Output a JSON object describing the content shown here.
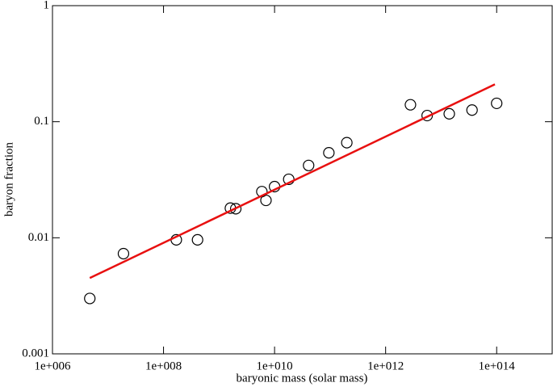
{
  "chart_data": {
    "type": "scatter",
    "xlabel": "baryonic mass (solar mass)",
    "ylabel": "baryon fraction",
    "xscale": "log",
    "yscale": "log",
    "xlim": [
      1000000.0,
      1000000000000000.0
    ],
    "ylim": [
      0.001,
      1
    ],
    "xticks": [
      {
        "value": 1000000.0,
        "label": "1e+006"
      },
      {
        "value": 100000000.0,
        "label": "1e+008"
      },
      {
        "value": 10000000000.0,
        "label": "1e+010"
      },
      {
        "value": 1000000000000.0,
        "label": "1e+012"
      },
      {
        "value": 100000000000000.0,
        "label": "1e+014"
      }
    ],
    "yticks": [
      0.001,
      0.01,
      0.1,
      1
    ],
    "series": [
      {
        "type": "scatter",
        "color": "#000000",
        "x": [
          4700000.0,
          19000000.0,
          170000000.0,
          410000000.0,
          1600000000.0,
          2000000000.0,
          5900000000.0,
          7000000000.0,
          10000000000.0,
          18000000000.0,
          41000000000.0,
          95000000000.0,
          200000000000.0,
          2800000000000.0,
          5600000000000.0,
          14000000000000.0,
          36000000000000.0,
          100000000000000.0
        ],
        "values": [
          0.003,
          0.0073,
          0.0096,
          0.0096,
          0.018,
          0.0178,
          0.025,
          0.021,
          0.0276,
          0.0319,
          0.042,
          0.054,
          0.066,
          0.14,
          0.113,
          0.117,
          0.126,
          0.144
        ]
      },
      {
        "type": "line",
        "color": "#e81010",
        "x": [
          4700000.0,
          93000000000000.0
        ],
        "values": [
          0.0045,
          0.21
        ]
      }
    ]
  }
}
